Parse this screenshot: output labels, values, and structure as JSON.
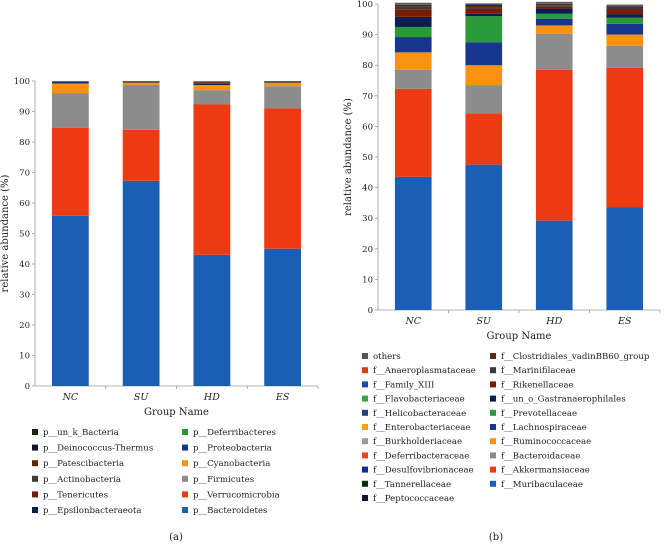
{
  "chart_data": [
    {
      "type": "stacked-bar",
      "panel_label": "(a)",
      "xlabel": "Group Name",
      "ylabel": "relative abundance (%)",
      "ylim": [
        0,
        100
      ],
      "yticks": [
        0,
        10,
        20,
        30,
        40,
        50,
        60,
        70,
        80,
        90,
        100
      ],
      "categories": [
        "NC",
        "SU",
        "HD",
        "ES"
      ],
      "series": [
        {
          "name": "p__Bacteroidetes",
          "color": "#1b5fb4",
          "values": [
            55.8,
            67.3,
            43.0,
            45.0
          ]
        },
        {
          "name": "p__Verrucomicrobia",
          "color": "#ec3b12",
          "values": [
            28.9,
            16.7,
            49.3,
            46.0
          ]
        },
        {
          "name": "p__Firmicutes",
          "color": "#8c8c8c",
          "values": [
            11.2,
            14.7,
            4.7,
            7.3
          ]
        },
        {
          "name": "p__Cyanobacteria",
          "color": "#f7930f",
          "values": [
            3.3,
            0.8,
            1.7,
            1.2
          ]
        },
        {
          "name": "p__Epsilonbacteraeota",
          "color": "#0a1f4f",
          "values": [
            0.3,
            0.2,
            0.4,
            0.2
          ]
        },
        {
          "name": "p__Proteobacteria",
          "color": "#18358f",
          "values": [
            0.2,
            0.2,
            0.3,
            0.2
          ]
        },
        {
          "name": "p__Tenericutes",
          "color": "#7a1a05",
          "values": [
            0.2,
            0.1,
            0.3,
            0.1
          ]
        },
        {
          "name": "p__Deferribacteres",
          "color": "#2a9a38",
          "values": [
            0.1,
            0.0,
            0.1,
            0.0
          ]
        },
        {
          "name": "p__Actinobacteria",
          "color": "#3b3b3b",
          "values": [
            0.0,
            0.0,
            0.1,
            0.0
          ]
        },
        {
          "name": "p__Patescibacteria",
          "color": "#5a2a0a",
          "values": [
            0.0,
            0.0,
            0.1,
            0.0
          ]
        },
        {
          "name": "p__Deinococcus-Thermus",
          "color": "#101828",
          "values": [
            0.0,
            0.0,
            0.0,
            0.0
          ]
        },
        {
          "name": "p__un_k_Bacteria",
          "color": "#0d2a10",
          "values": [
            0.0,
            0.0,
            0.0,
            0.0
          ]
        }
      ],
      "legend": [
        "p__un_k_Bacteria",
        "p__Deferribacteres",
        "p__Deinococcus-Thermus",
        "p__Proteobacteria",
        "p__Patescibacteria",
        "p__Cyanobacteria",
        "p__Actinobacteria",
        "p__Firmicutes",
        "p__Tenericutes",
        "p__Verrucomicrobia",
        "p__Epsilonbacteraeota",
        "p__Bacteroidetes"
      ]
    },
    {
      "type": "stacked-bar",
      "panel_label": "(b)",
      "xlabel": "Group Name",
      "ylabel": "relative abundance (%)",
      "ylim": [
        0,
        100
      ],
      "yticks": [
        0,
        10,
        20,
        30,
        40,
        50,
        60,
        70,
        80,
        90,
        100
      ],
      "categories": [
        "NC",
        "SU",
        "HD",
        "ES"
      ],
      "series": [
        {
          "name": "f__Muribaculaceae",
          "color": "#1b5fb4",
          "values": [
            43.5,
            47.5,
            29.2,
            33.5
          ]
        },
        {
          "name": "f__Akkermansiaceae",
          "color": "#ec3b12",
          "values": [
            28.8,
            16.8,
            49.3,
            45.6
          ]
        },
        {
          "name": "f__Bacteroidaceae",
          "color": "#8c8c8c",
          "values": [
            6.2,
            9.2,
            11.8,
            7.2
          ]
        },
        {
          "name": "f__Ruminococcaceae",
          "color": "#f7930f",
          "values": [
            5.7,
            6.5,
            2.7,
            3.7
          ]
        },
        {
          "name": "f__Lachnospiraceae",
          "color": "#18358f",
          "values": [
            5.0,
            7.5,
            2.2,
            3.5
          ]
        },
        {
          "name": "f__Prevotellaceae",
          "color": "#2a9a38",
          "values": [
            3.3,
            8.5,
            1.6,
            2.0
          ]
        },
        {
          "name": "f__un_o_Gastranaerophilales",
          "color": "#0a1f4f",
          "values": [
            3.3,
            0.8,
            1.7,
            1.2
          ]
        },
        {
          "name": "f__Rikenellaceae",
          "color": "#7a1a05",
          "values": [
            2.5,
            1.7,
            0.6,
            1.5
          ]
        },
        {
          "name": "f__Marinifilaceae",
          "color": "#3b3b3b",
          "values": [
            0.8,
            0.5,
            0.5,
            0.5
          ]
        },
        {
          "name": "f__Clostridiales_vadinBB60_group",
          "color": "#5a2a0a",
          "values": [
            0.4,
            0.5,
            0.2,
            0.4
          ]
        },
        {
          "name": "f__Peptococcaceae",
          "color": "#101828",
          "values": [
            0.2,
            0.3,
            0.2,
            0.2
          ]
        },
        {
          "name": "f__Tannerellaceae",
          "color": "#0d2a10",
          "values": [
            0.1,
            0.1,
            0.1,
            0.1
          ]
        },
        {
          "name": "f__Desulfovibrionaceae",
          "color": "#0f2d8c",
          "values": [
            0.1,
            0.1,
            0.1,
            0.1
          ]
        },
        {
          "name": "f__Deferribacteraceae",
          "color": "#e8461e",
          "values": [
            0.05,
            0.0,
            0.1,
            0.0
          ]
        },
        {
          "name": "f__Burkholderiaceae",
          "color": "#9a9a9a",
          "values": [
            0.05,
            0.0,
            0.0,
            0.0
          ]
        },
        {
          "name": "f__Enterobacteriaceae",
          "color": "#f8a21a",
          "values": [
            0.0,
            0.0,
            0.0,
            0.0
          ]
        },
        {
          "name": "f__Helicobacteraceae",
          "color": "#24427a",
          "values": [
            0.0,
            0.0,
            0.0,
            0.0
          ]
        },
        {
          "name": "f__Flavobacteriaceae",
          "color": "#3aa148",
          "values": [
            0.0,
            0.0,
            0.0,
            0.0
          ]
        },
        {
          "name": "f__Family_XIII",
          "color": "#1b4aa6",
          "values": [
            0.0,
            0.0,
            0.0,
            0.0
          ]
        },
        {
          "name": "f__Anaeroplasmataceae",
          "color": "#d83a14",
          "values": [
            0.0,
            0.0,
            0.0,
            0.0
          ]
        },
        {
          "name": "others",
          "color": "#555555",
          "values": [
            0.4,
            0.2,
            0.4,
            0.3
          ]
        }
      ],
      "legend": [
        "others",
        "f__Clostridiales_vadinBB60_group",
        "f__Anaeroplasmataceae",
        "f__Marinifilaceae",
        "f__Family_XIII",
        "f__Rikenellaceae",
        "f__Flavobacteriaceae",
        "f__un_o_Gastranaerophilales",
        "f__Helicobacteraceae",
        "f__Prevotellaceae",
        "f__Enterobacteriaceae",
        "f__Lachnospiraceae",
        "f__Burkholderiaceae",
        "f__Ruminococcaceae",
        "f__Deferribacteraceae",
        "f__Bacteroidaceae",
        "f__Desulfovibrionaceae",
        "f__Akkermansiaceae",
        "f__Tannerellaceae",
        "f__Muribaculaceae",
        "f__Peptococcaceae"
      ]
    }
  ]
}
